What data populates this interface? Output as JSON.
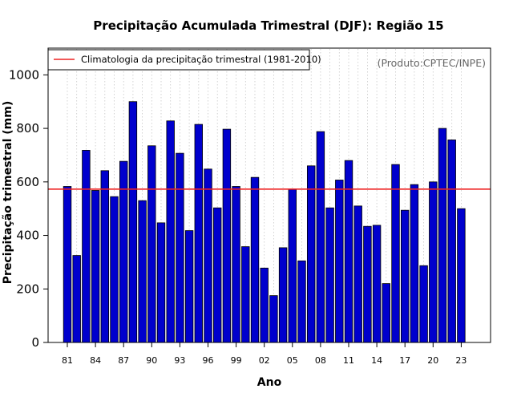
{
  "chart_data": {
    "type": "bar",
    "title": "Precipitação Acumulada Trimestral (DJF): Região 15",
    "xlabel": "Ano",
    "ylabel": "Precipitação trimestral (mm)",
    "ylim": [
      0,
      1100
    ],
    "yticks": [
      0,
      200,
      400,
      600,
      800,
      1000
    ],
    "grid": "vertical dotted",
    "categories": [
      "81",
      "82",
      "83",
      "84",
      "85",
      "86",
      "87",
      "88",
      "89",
      "90",
      "91",
      "92",
      "93",
      "94",
      "95",
      "96",
      "97",
      "98",
      "99",
      "00",
      "01",
      "02",
      "03",
      "04",
      "05",
      "06",
      "07",
      "08",
      "09",
      "10",
      "11",
      "12",
      "13",
      "14",
      "15",
      "16",
      "17",
      "18",
      "19",
      "20",
      "21",
      "22",
      "23"
    ],
    "xtick_labels": [
      "81",
      "84",
      "87",
      "90",
      "93",
      "96",
      "99",
      "02",
      "05",
      "08",
      "11",
      "14",
      "17",
      "20",
      "23"
    ],
    "series": [
      {
        "name": "Precipitação trimestral",
        "values": [
          583,
          325,
          718,
          568,
          642,
          545,
          677,
          900,
          530,
          735,
          447,
          828,
          707,
          418,
          815,
          648,
          503,
          797,
          583,
          358,
          617,
          278,
          175,
          354,
          572,
          305,
          660,
          788,
          503,
          607,
          680,
          510,
          434,
          438,
          220,
          665,
          494,
          590,
          287,
          600,
          800,
          757,
          500
        ]
      }
    ],
    "reference_line": {
      "label": "Climatologia da precipitação trimestral (1981-2010)",
      "value": 573
    },
    "legend_position": "top-left",
    "annotation": "(Produto:CPTEC/INPE)",
    "colors": {
      "bar_fill": "#0000cd",
      "bar_stroke": "#000000",
      "reference_line": "#ee2222",
      "grid": "#c8c8c8",
      "annotation": "#666666"
    }
  }
}
